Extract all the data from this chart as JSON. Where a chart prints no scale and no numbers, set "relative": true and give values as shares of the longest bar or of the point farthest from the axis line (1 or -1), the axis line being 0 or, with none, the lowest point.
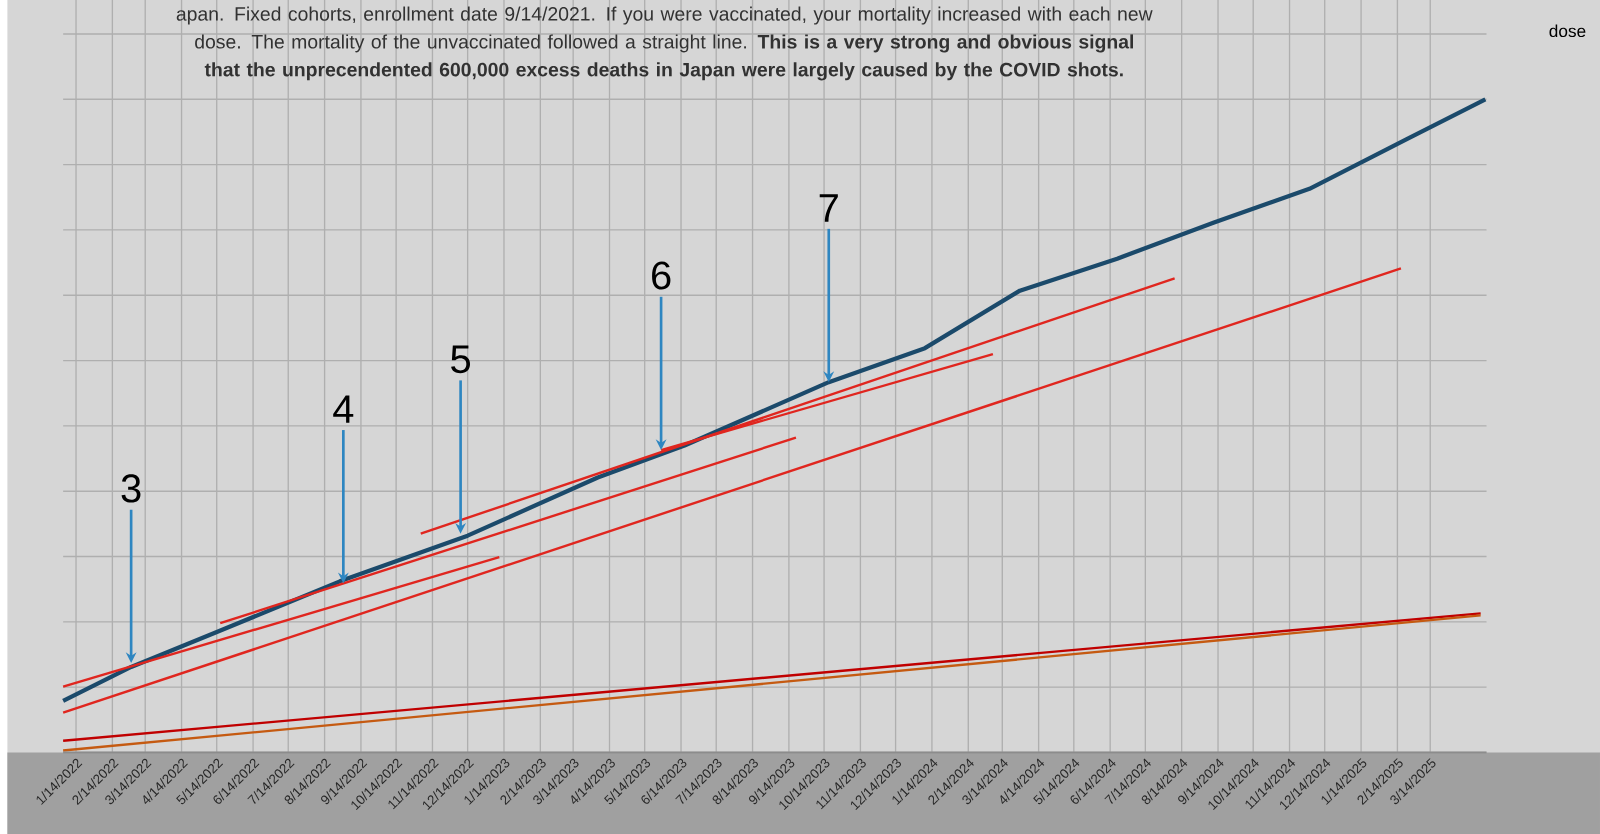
{
  "chart_data": {
    "type": "line",
    "relative": true,
    "title": "apan. Fixed cohorts, enrollment date 9/14/2021.  If you were vaccinated, your mortality increased with each new dose. The mortality of the unvaccinated followed a straight line. **This is a very strong and obvious signal that the unprecendented 600,000 excess deaths in Japan were largely caused by the COVID shots.**",
    "xlim": [
      "2022-01-03",
      "2025-05-01"
    ],
    "xticks": [
      {
        "value": "2022-01-14",
        "label": "1/14/2022"
      },
      {
        "value": "2022-02-14",
        "label": "2/14/2022"
      },
      {
        "value": "2022-03-14",
        "label": "3/14/2022"
      },
      {
        "value": "2022-04-14",
        "label": "4/14/2022"
      },
      {
        "value": "2022-05-14",
        "label": "5/14/2022"
      },
      {
        "value": "2022-06-14",
        "label": "6/14/2022"
      },
      {
        "value": "2022-07-14",
        "label": "7/14/2022"
      },
      {
        "value": "2022-08-14",
        "label": "8/14/2022"
      },
      {
        "value": "2022-09-14",
        "label": "9/14/2022"
      },
      {
        "value": "2022-10-14",
        "label": "10/14/2022"
      },
      {
        "value": "2022-11-14",
        "label": "11/14/2022"
      },
      {
        "value": "2022-12-14",
        "label": "12/14/2022"
      },
      {
        "value": "2023-01-14",
        "label": "1/14/2023"
      },
      {
        "value": "2023-02-14",
        "label": "2/14/2023"
      },
      {
        "value": "2023-03-14",
        "label": "3/14/2023"
      },
      {
        "value": "2023-04-14",
        "label": "4/14/2023"
      },
      {
        "value": "2023-05-14",
        "label": "5/14/2023"
      },
      {
        "value": "2023-06-14",
        "label": "6/14/2023"
      },
      {
        "value": "2023-07-14",
        "label": "7/14/2023"
      },
      {
        "value": "2023-08-14",
        "label": "8/14/2023"
      },
      {
        "value": "2023-09-14",
        "label": "9/14/2023"
      },
      {
        "value": "2023-10-14",
        "label": "10/14/2023"
      },
      {
        "value": "2023-11-14",
        "label": "11/14/2023"
      },
      {
        "value": "2023-12-14",
        "label": "12/14/2023"
      },
      {
        "value": "2024-01-14",
        "label": "1/14/2024"
      },
      {
        "value": "2024-02-14",
        "label": "2/14/2024"
      },
      {
        "value": "2024-03-14",
        "label": "3/14/2024"
      },
      {
        "value": "2024-04-14",
        "label": "4/14/2024"
      },
      {
        "value": "2024-05-14",
        "label": "5/14/2024"
      },
      {
        "value": "2024-06-14",
        "label": "6/14/2024"
      },
      {
        "value": "2024-07-14",
        "label": "7/14/2024"
      },
      {
        "value": "2024-08-14",
        "label": "8/14/2024"
      },
      {
        "value": "2024-09-14",
        "label": "9/14/2024"
      },
      {
        "value": "2024-10-14",
        "label": "10/14/2024"
      },
      {
        "value": "2024-11-14",
        "label": "11/14/2024"
      },
      {
        "value": "2024-12-14",
        "label": "12/14/2024"
      },
      {
        "value": "2025-01-14",
        "label": "1/14/2025"
      },
      {
        "value": "2025-02-14",
        "label": "2/14/2025"
      },
      {
        "value": "2025-03-14",
        "label": "3/14/2025"
      }
    ],
    "grid": true,
    "line_style": "solid",
    "series": [
      {
        "color": "#1b4a6b",
        "x": [
          "2022-01-03",
          "2022-03-02",
          "2022-05-12",
          "2022-08-27",
          "2022-12-14",
          "2023-04-04",
          "2023-06-17",
          "2023-10-18",
          "2024-01-08",
          "2024-03-29",
          "2024-06-20",
          "2024-09-10",
          "2024-12-01",
          "2025-02-22",
          "2025-04-30"
        ],
        "values": [
          0.079,
          0.131,
          0.183,
          0.262,
          0.332,
          0.421,
          0.47,
          0.567,
          0.619,
          0.707,
          0.756,
          0.811,
          0.863,
          0.939,
          1.0
        ]
      },
      {
        "color": "#e0261f",
        "x": [
          "2022-01-03",
          "2023-01-10"
        ],
        "values": [
          0.101,
          0.299
        ]
      },
      {
        "color": "#e0261f",
        "x": [
          "2022-01-03",
          "2025-02-17"
        ],
        "values": [
          0.061,
          0.741
        ]
      },
      {
        "color": "#e0261f",
        "x": [
          "2022-05-17",
          "2023-09-20"
        ],
        "values": [
          0.198,
          0.482
        ]
      },
      {
        "color": "#e0261f",
        "x": [
          "2022-11-04",
          "2024-08-08"
        ],
        "values": [
          0.335,
          0.726
        ]
      },
      {
        "color": "#e0261f",
        "x": [
          "2023-05-28",
          "2024-03-06"
        ],
        "values": [
          0.463,
          0.61
        ]
      },
      {
        "color": "#c00000",
        "x": [
          "2022-01-03",
          "2025-04-26"
        ],
        "values": [
          0.018,
          0.213
        ]
      },
      {
        "color": "#c55a11",
        "x": [
          "2022-01-03",
          "2025-04-26"
        ],
        "values": [
          0.003,
          0.21
        ]
      }
    ],
    "annotations": [
      "dose",
      {
        "text": "3",
        "x": "2022-03-02",
        "y": 0.137
      },
      {
        "text": "4",
        "x": "2022-08-30",
        "y": 0.259
      },
      {
        "text": "5",
        "x": "2022-12-08",
        "y": 0.335
      },
      {
        "text": "6",
        "x": "2023-05-28",
        "y": 0.463
      },
      {
        "text": "7",
        "x": "2023-10-18",
        "y": 0.567
      }
    ]
  }
}
